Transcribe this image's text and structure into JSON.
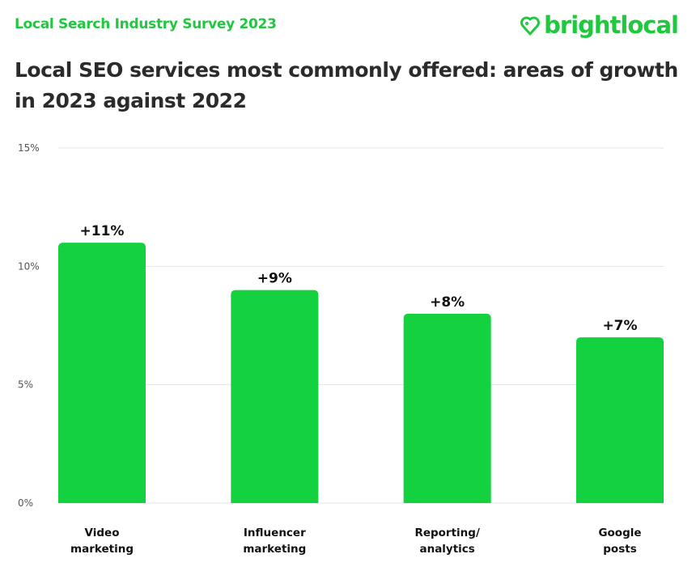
{
  "header": {
    "survey_label": "Local Search Industry Survey 2023",
    "logo_text": "brightlocal",
    "title": "Local SEO services most commonly offered: areas of growth in 2023 against 2022"
  },
  "colors": {
    "bar": "#14d13f",
    "brand": "#1fc93e",
    "grid": "#e6e6e6"
  },
  "chart_data": {
    "type": "bar",
    "title": "Local SEO services most commonly offered: areas of growth in 2023 against 2022",
    "categories": [
      [
        "Video",
        "marketing"
      ],
      [
        "Influencer",
        "marketing"
      ],
      [
        "Reporting/",
        "analytics"
      ],
      [
        "Google",
        "posts"
      ]
    ],
    "values": [
      11,
      9,
      8,
      7
    ],
    "data_labels": [
      "+11%",
      "+9%",
      "+8%",
      "+7%"
    ],
    "unit": "%",
    "ylim": [
      0,
      15
    ],
    "yticks": [
      0,
      5,
      10,
      15
    ],
    "ytick_labels": [
      "0%",
      "5%",
      "10%",
      "15%"
    ],
    "grid": true,
    "legend": "none"
  }
}
